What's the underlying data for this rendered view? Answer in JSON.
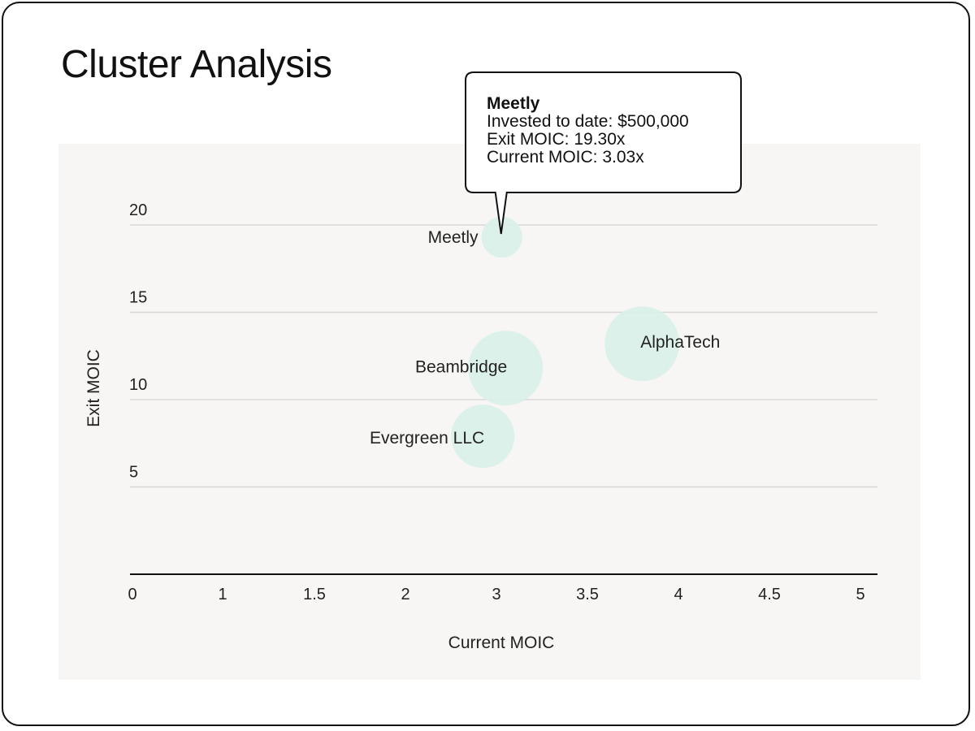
{
  "title": "Cluster Analysis",
  "colors": {
    "plot_background": "#f7f6f4",
    "bubble_fill": "#d9f1ea",
    "gridline": "#d8d8d8",
    "axis_line": "#111111"
  },
  "chart_data": {
    "type": "scatter",
    "xlabel": "Current MOIC",
    "ylabel": "Exit MOIC",
    "xlim": [
      0,
      5
    ],
    "ylim": [
      0,
      20
    ],
    "x_ticks": [
      "0",
      "1",
      "1.5",
      "2",
      "3",
      "3.5",
      "4",
      "4.5",
      "5"
    ],
    "y_ticks": [
      "5",
      "10",
      "15",
      "20"
    ],
    "grid": true,
    "points": [
      {
        "name": "Meetly",
        "x": 3.03,
        "y": 19.3,
        "size": 0.3
      },
      {
        "name": "Beambridge",
        "x": 3.05,
        "y": 11.8,
        "size": 1.0
      },
      {
        "name": "AlphaTech",
        "x": 3.8,
        "y": 13.2,
        "size": 1.0
      },
      {
        "name": "Evergreen LLC",
        "x": 2.85,
        "y": 7.9,
        "size": 0.72
      }
    ],
    "tooltip": {
      "title": "Meetly",
      "lines": [
        "Invested to date: $500,000",
        "Exit MOIC: 19.30x",
        "Current MOIC: 3.03x"
      ]
    }
  }
}
